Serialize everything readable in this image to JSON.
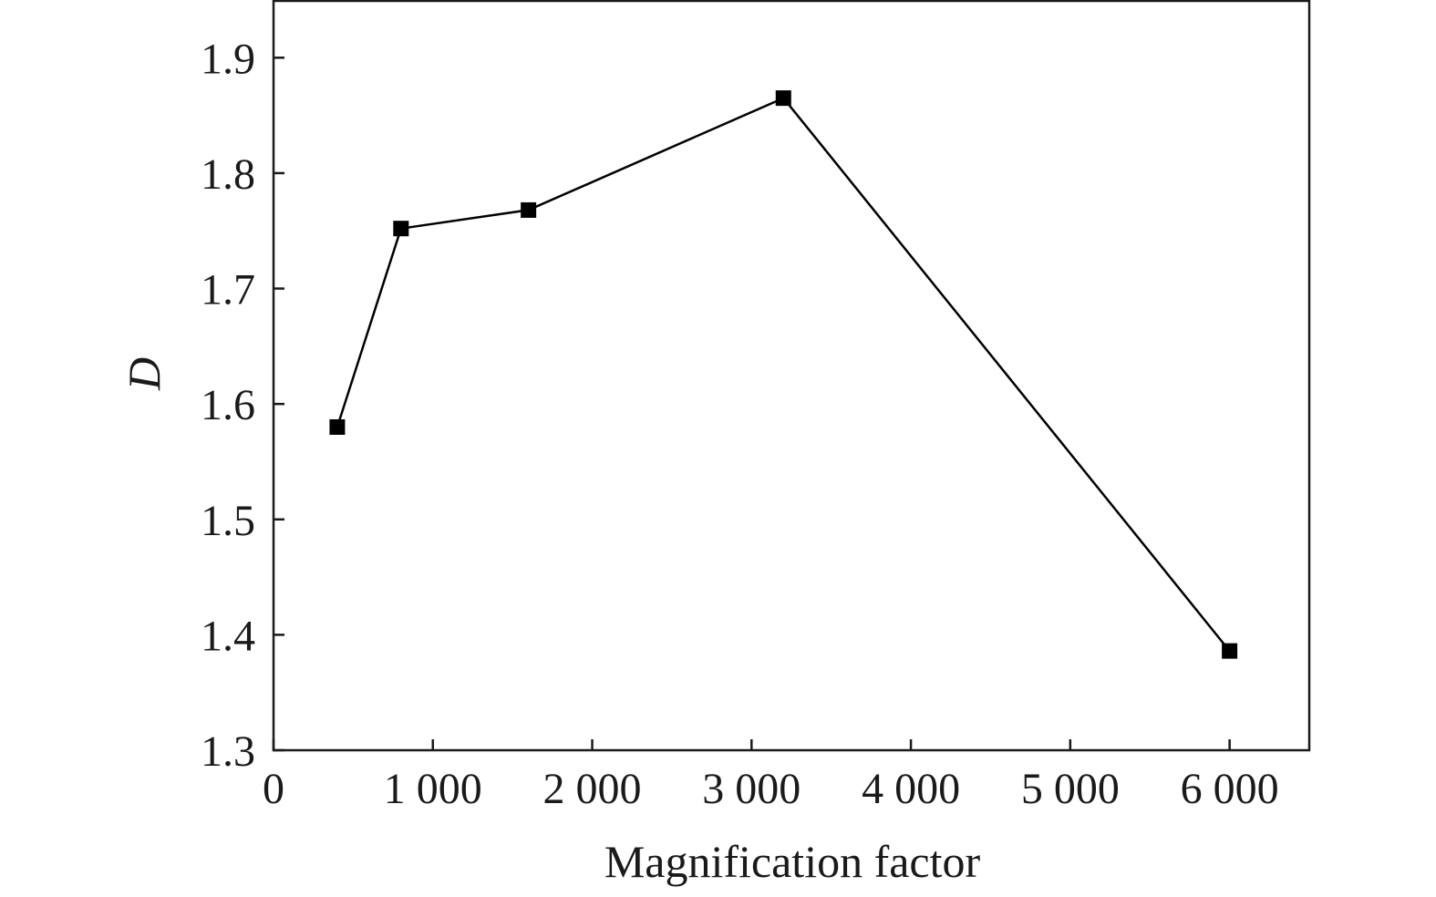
{
  "chart_data": {
    "type": "line",
    "title": "",
    "xlabel": "Magnification factor",
    "ylabel": "D",
    "xlim": [
      0,
      6500
    ],
    "ylim": [
      1.3,
      1.95
    ],
    "x_ticks": [
      0,
      1000,
      2000,
      3000,
      4000,
      5000,
      6000
    ],
    "x_tick_labels": [
      "0",
      "1 000",
      "2 000",
      "3 000",
      "4 000",
      "5 000",
      "6 000"
    ],
    "y_ticks": [
      1.3,
      1.4,
      1.5,
      1.6,
      1.7,
      1.8,
      1.9
    ],
    "y_tick_labels": [
      "1.3",
      "1.4",
      "1.5",
      "1.6",
      "1.7",
      "1.8",
      "1.9"
    ],
    "grid": false,
    "legend": "none",
    "series": [
      {
        "marker": "square",
        "color": "#000000",
        "x": [
          400,
          800,
          1600,
          3200,
          6000
        ],
        "y": [
          1.58,
          1.752,
          1.768,
          1.865,
          1.386
        ]
      }
    ]
  }
}
